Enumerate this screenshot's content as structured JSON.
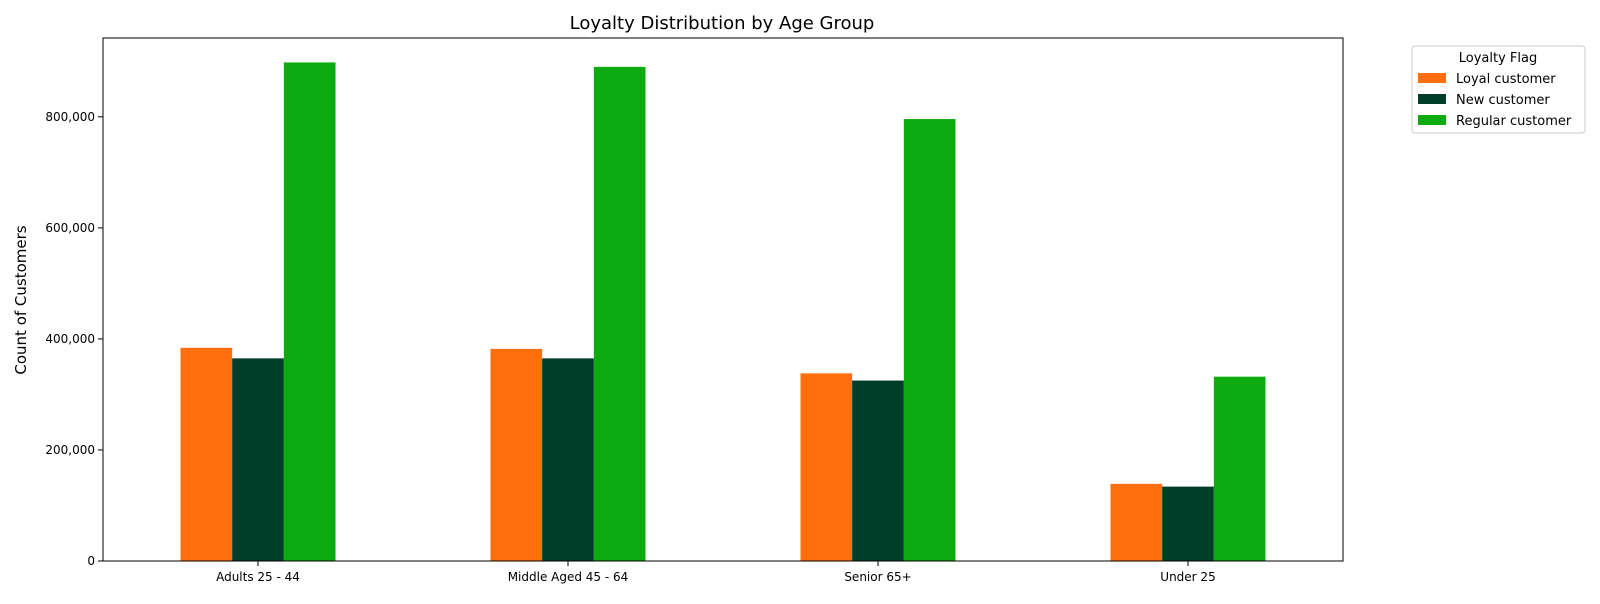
{
  "chart_data": {
    "type": "bar",
    "title": "Loyalty Distribution by Age Group",
    "xlabel": "",
    "ylabel": "Count of Customers",
    "categories": [
      "Adults 25 - 44",
      "Middle Aged 45 - 64",
      "Senior 65+",
      "Under 25"
    ],
    "series": [
      {
        "name": "Loyal customer",
        "color": "#ff6f0d",
        "values": [
          384000,
          382000,
          338000,
          139000
        ]
      },
      {
        "name": "New customer",
        "color": "#013e2a",
        "values": [
          365000,
          365000,
          325000,
          134000
        ]
      },
      {
        "name": "Regular customer",
        "color": "#0cab0f",
        "values": [
          898000,
          890000,
          796000,
          332000
        ]
      }
    ],
    "ylim": [
      0,
      942000
    ],
    "yticks": [
      0,
      200000,
      400000,
      600000,
      800000
    ],
    "ytick_labels": [
      "0",
      "200,000",
      "400,000",
      "600,000",
      "800,000"
    ],
    "grid": false,
    "legend": {
      "title": "Loyalty Flag",
      "placement": "outside-top-right"
    }
  }
}
